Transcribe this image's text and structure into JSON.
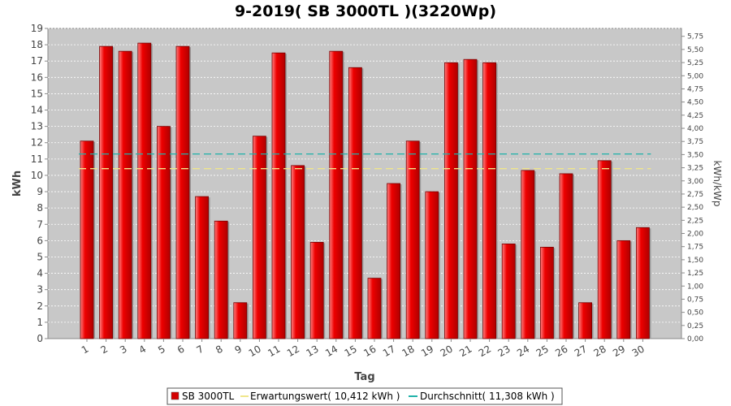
{
  "chart_data": {
    "type": "bar",
    "title": "9-2019( SB 3000TL )(3220Wp)",
    "xlabel": "Tag",
    "ylabel": "kWh",
    "ylabel_right": "kWh/kWp",
    "ylim": [
      0,
      19
    ],
    "ylim_right": [
      0,
      5.9
    ],
    "grid": true,
    "legend_position": "bottom",
    "categories": [
      "1",
      "2",
      "3",
      "4",
      "5",
      "6",
      "7",
      "8",
      "9",
      "10",
      "11",
      "12",
      "13",
      "14",
      "15",
      "16",
      "17",
      "18",
      "19",
      "20",
      "21",
      "22",
      "23",
      "24",
      "25",
      "26",
      "27",
      "28",
      "29",
      "30"
    ],
    "series": [
      {
        "name": "SB 3000TL",
        "color": "#e00000",
        "values": [
          12.1,
          17.9,
          17.6,
          18.1,
          13.0,
          17.9,
          8.7,
          7.2,
          2.2,
          12.4,
          17.5,
          10.6,
          5.9,
          17.6,
          16.6,
          3.7,
          9.5,
          12.1,
          9.0,
          16.9,
          17.1,
          16.9,
          5.8,
          10.3,
          5.6,
          10.1,
          2.2,
          10.9,
          6.0,
          6.8
        ]
      }
    ],
    "reference_lines": [
      {
        "name": "Erwartungswert",
        "label": "Erwartungswert( 10,412 kWh )",
        "value": 10.412,
        "color": "#f0e68c"
      },
      {
        "name": "Durchschnitt",
        "label": "Durchschnitt( 11,308 kWh )",
        "value": 11.308,
        "color": "#20b2aa"
      }
    ],
    "yticks": [
      "0",
      "1",
      "2",
      "3",
      "4",
      "5",
      "6",
      "7",
      "8",
      "9",
      "10",
      "11",
      "12",
      "13",
      "14",
      "15",
      "16",
      "17",
      "18",
      "19"
    ],
    "yticks_right": [
      "0,00",
      "0,25",
      "0,50",
      "0,75",
      "1,00",
      "1,25",
      "1,50",
      "1,75",
      "2,00",
      "2,25",
      "2,50",
      "2,75",
      "3,00",
      "3,25",
      "3,50",
      "3,75",
      "4,00",
      "4,25",
      "4,50",
      "4,75",
      "5,00",
      "5,25",
      "5,50",
      "5,75"
    ]
  }
}
